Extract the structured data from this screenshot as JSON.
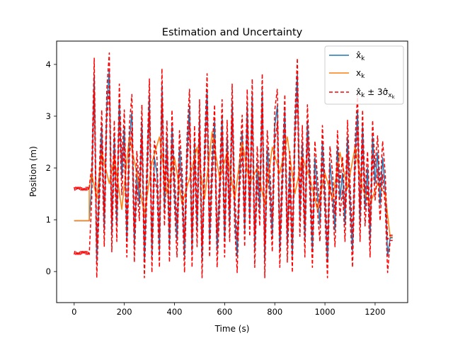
{
  "chart_data": {
    "type": "line",
    "title": "Estimation and Uncertainty",
    "xlabel": "Time (s)",
    "ylabel": "Position (m)",
    "xlim": [
      -70,
      1330
    ],
    "ylim": [
      -0.6,
      4.45
    ],
    "xticks": [
      0,
      200,
      400,
      600,
      800,
      1000,
      1200
    ],
    "yticks": [
      0,
      1,
      2,
      3,
      4
    ],
    "grid": false,
    "legend_position": "top-right",
    "colors": {
      "estimate": "#1f77b4",
      "truth": "#ff7f0e",
      "bounds": "#ff0000"
    },
    "legend": [
      {
        "series": "estimate",
        "label": "x̂_k",
        "style": "solid"
      },
      {
        "series": "truth",
        "label": "x_k",
        "style": "solid"
      },
      {
        "series": "bounds",
        "label": "x̂_k ± 3σ̂_xk",
        "style": "dashed"
      }
    ],
    "series": [
      {
        "key": "estimate",
        "x": [
          0,
          10,
          20,
          30,
          40,
          50,
          60,
          70,
          80,
          90,
          100,
          110,
          120,
          130,
          140,
          150,
          160,
          170,
          180,
          190,
          200,
          210,
          220,
          230,
          240,
          250,
          260,
          270,
          280,
          290,
          300,
          310,
          320,
          330,
          340,
          350,
          360,
          370,
          380,
          390,
          400,
          410,
          420,
          430,
          440,
          450,
          460,
          470,
          480,
          490,
          500,
          510,
          520,
          530,
          540,
          550,
          560,
          570,
          580,
          590,
          600,
          610,
          620,
          630,
          640,
          650,
          660,
          670,
          680,
          690,
          700,
          710,
          720,
          730,
          740,
          750,
          760,
          770,
          780,
          790,
          800,
          810,
          820,
          830,
          840,
          850,
          860,
          870,
          880,
          890,
          900,
          910,
          920,
          930,
          940,
          950,
          960,
          970,
          980,
          990,
          1000,
          1010,
          1020,
          1030,
          1040,
          1050,
          1060,
          1070,
          1080,
          1090,
          1100,
          1110,
          1120,
          1130,
          1140,
          1150,
          1160,
          1170,
          1180,
          1190,
          1200,
          1210,
          1220,
          1230,
          1240,
          1250,
          1260,
          1270
        ],
        "y": [
          0.98,
          0.98,
          0.98,
          0.98,
          0.98,
          0.98,
          0.98,
          1.7,
          3.8,
          0.2,
          1.6,
          2.8,
          0.8,
          3.2,
          3.9,
          0.7,
          2.6,
          0.9,
          3.3,
          1.8,
          2.8,
          0.6,
          2.5,
          3.1,
          0.5,
          2.0,
          1.3,
          2.9,
          0.2,
          1.8,
          3.4,
          0.3,
          2.2,
          1.9,
          0.4,
          3.6,
          1.2,
          2.6,
          0.5,
          2.8,
          1.6,
          0.6,
          2.4,
          1.7,
          0.3,
          2.3,
          3.2,
          0.4,
          2.5,
          0.8,
          3.0,
          0.2,
          2.2,
          3.5,
          0.6,
          2.0,
          2.9,
          0.4,
          1.5,
          3.0,
          0.6,
          2.6,
          0.9,
          3.3,
          1.2,
          0.3,
          1.9,
          2.7,
          0.8,
          3.2,
          1.0,
          3.4,
          0.4,
          2.1,
          1.2,
          3.5,
          0.2,
          2.4,
          1.7,
          0.7,
          2.8,
          3.2,
          0.4,
          1.8,
          3.1,
          0.5,
          2.0,
          0.3,
          2.7,
          3.8,
          1.0,
          2.5,
          0.6,
          2.9,
          1.8,
          0.4,
          2.2,
          1.5,
          0.9,
          2.5,
          1.4,
          0.2,
          2.1,
          1.6,
          0.8,
          2.4,
          1.4,
          1.9,
          0.9,
          2.6,
          1.4,
          0.4,
          2.2,
          3.1,
          0.9,
          2.8,
          1.2,
          2.0,
          0.6,
          2.6,
          1.7,
          2.3,
          1.3,
          2.2,
          1.6,
          0.3,
          0.65,
          0.65
        ],
        "style": "solid"
      },
      {
        "key": "truth",
        "x": [
          0,
          60,
          60,
          70,
          90,
          110,
          140,
          160,
          190,
          220,
          250,
          280,
          310,
          340,
          370,
          400,
          430,
          460,
          490,
          520,
          550,
          580,
          610,
          640,
          670,
          700,
          730,
          760,
          790,
          820,
          850,
          880,
          910,
          940,
          970,
          1000,
          1030,
          1060,
          1090,
          1120,
          1150,
          1180,
          1210,
          1240,
          1260,
          1270
        ],
        "y": [
          0.98,
          0.98,
          1.6,
          1.9,
          1.4,
          2.3,
          1.7,
          2.2,
          1.2,
          2.6,
          1.9,
          1.1,
          2.1,
          2.6,
          1.5,
          2.2,
          1.3,
          1.8,
          2.4,
          1.4,
          2.7,
          1.8,
          2.3,
          1.4,
          2.5,
          1.7,
          2.0,
          1.3,
          2.4,
          1.9,
          2.6,
          1.5,
          2.2,
          1.8,
          1.2,
          1.9,
          1.4,
          2.3,
          1.6,
          2.4,
          1.6,
          1.3,
          1.7,
          1.5,
          0.67,
          0.67
        ],
        "style": "solid"
      },
      {
        "key": "bounds",
        "note_sigma": 0.32,
        "upper_first": [
          1.62,
          1.58,
          1.65
        ],
        "style": "dashed"
      }
    ]
  }
}
